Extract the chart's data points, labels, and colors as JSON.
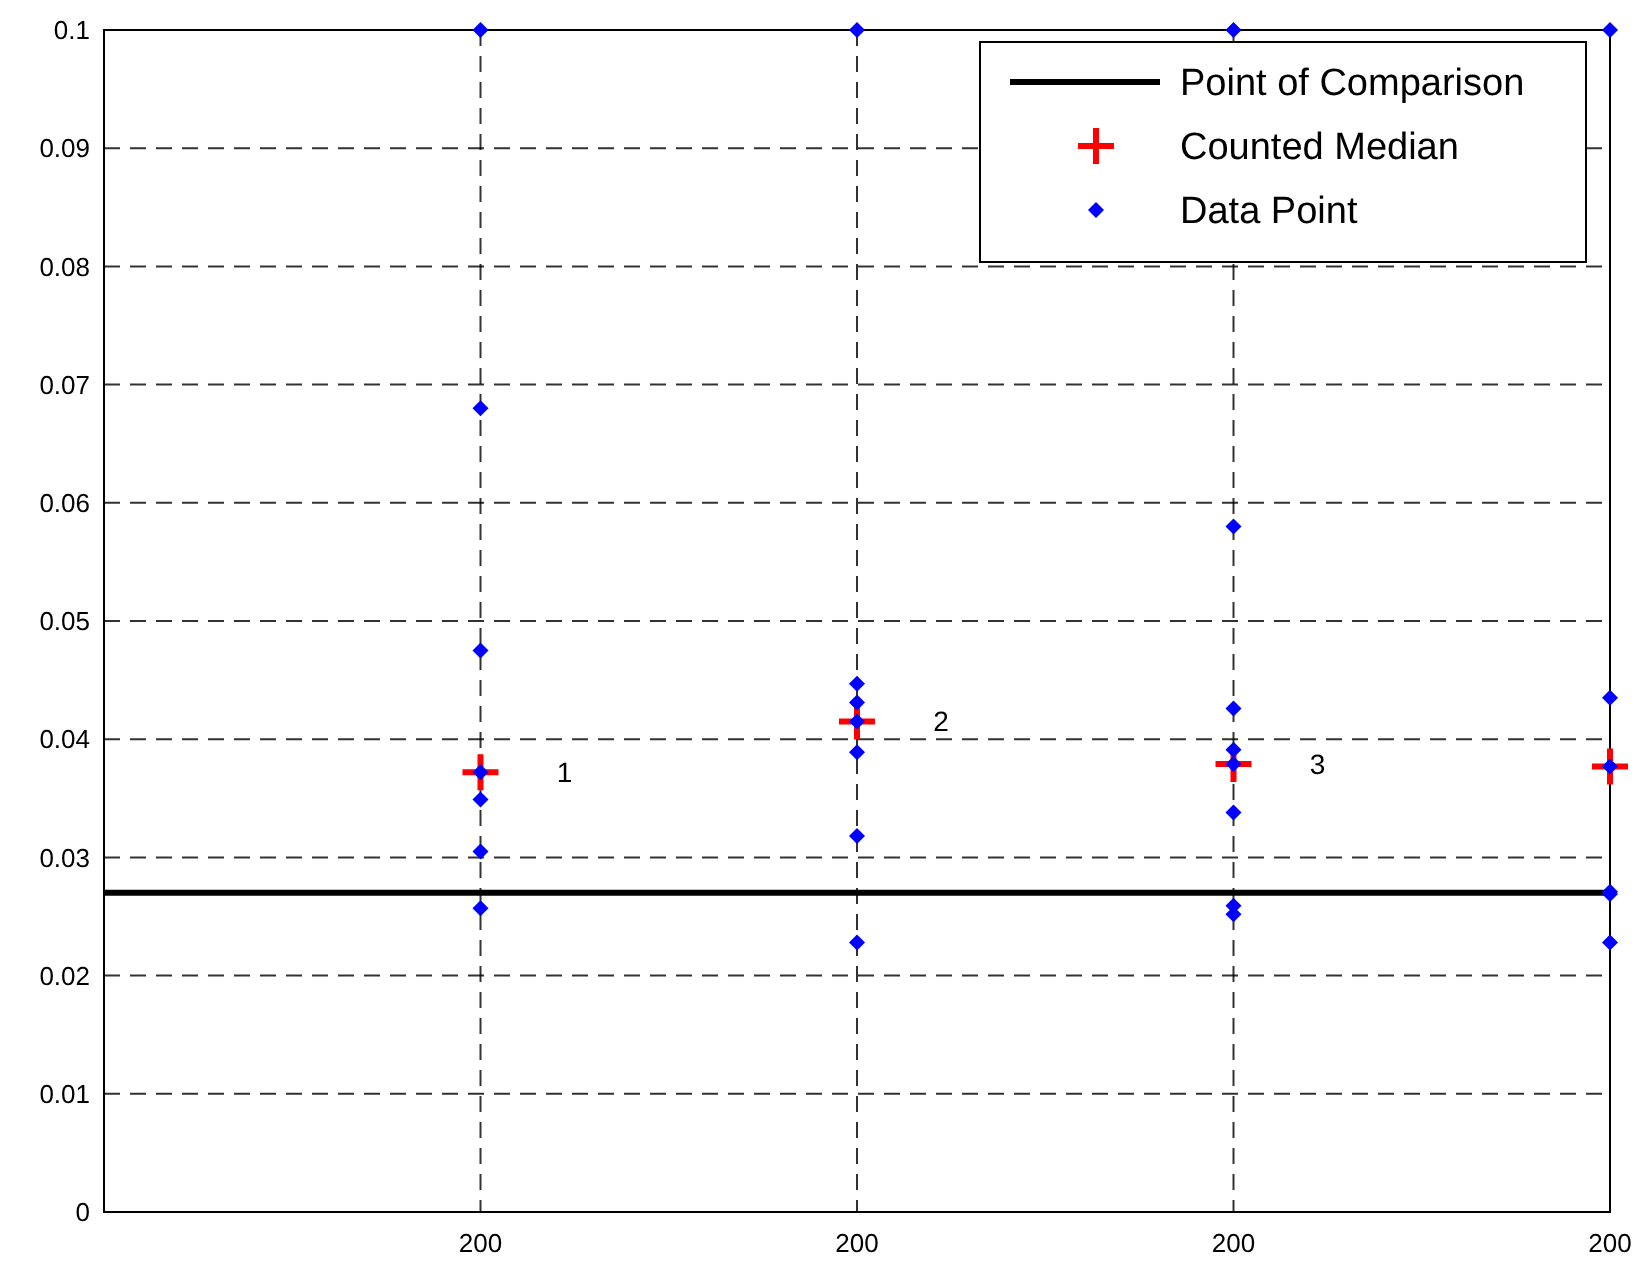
{
  "chart_data": {
    "type": "scatter",
    "categories": [
      null,
      "200",
      "200",
      "200",
      "200"
    ],
    "ylim": [
      0,
      0.1
    ],
    "yticks": [
      0,
      0.01,
      0.02,
      0.03,
      0.04,
      0.05,
      0.06,
      0.07,
      0.08,
      0.09,
      0.1
    ],
    "grid": true,
    "legend": "top right",
    "series": [
      {
        "name": "Point of Comparison",
        "type": "line",
        "color": "#000000",
        "marker": "none",
        "line_style": "solid",
        "values": [
          0.027,
          0.027,
          0.027,
          0.027,
          0.027
        ]
      },
      {
        "name": "Counted Median",
        "color": "#ff0000",
        "marker": "cross",
        "values": [
          null,
          0.0372,
          0.0415,
          0.0379,
          0.0377
        ]
      },
      {
        "name": "Data Point",
        "color": "#0000ff",
        "marker": "diamond",
        "values": [
          null,
          0.1,
          0.1,
          0.1,
          0.1
        ]
      },
      {
        "color": "#0000ff",
        "marker": "diamond",
        "values": [
          null,
          0.068,
          0.0447,
          0.058,
          0.0435
        ]
      },
      {
        "color": "#0000ff",
        "marker": "diamond",
        "values": [
          null,
          0.0475,
          0.0431,
          0.0426,
          0.0377
        ]
      },
      {
        "color": "#0000ff",
        "marker": "diamond",
        "values": [
          null,
          0.0372,
          0.0415,
          0.0391,
          0.0271
        ]
      },
      {
        "color": "#0000ff",
        "marker": "diamond",
        "values": [
          null,
          0.0349,
          0.0389,
          0.0379,
          0.0269
        ]
      },
      {
        "color": "#0000ff",
        "marker": "diamond",
        "values": [
          null,
          0.0305,
          0.0318,
          0.0338,
          0.0228
        ]
      },
      {
        "color": "#0000ff",
        "marker": "diamond",
        "values": [
          null,
          0.0257,
          0.0228,
          0.0259,
          null
        ]
      },
      {
        "color": "#0000ff",
        "marker": "diamond",
        "values": [
          null,
          null,
          null,
          0.0252,
          null
        ]
      }
    ],
    "annotations": [
      "1",
      "2",
      "3"
    ]
  }
}
